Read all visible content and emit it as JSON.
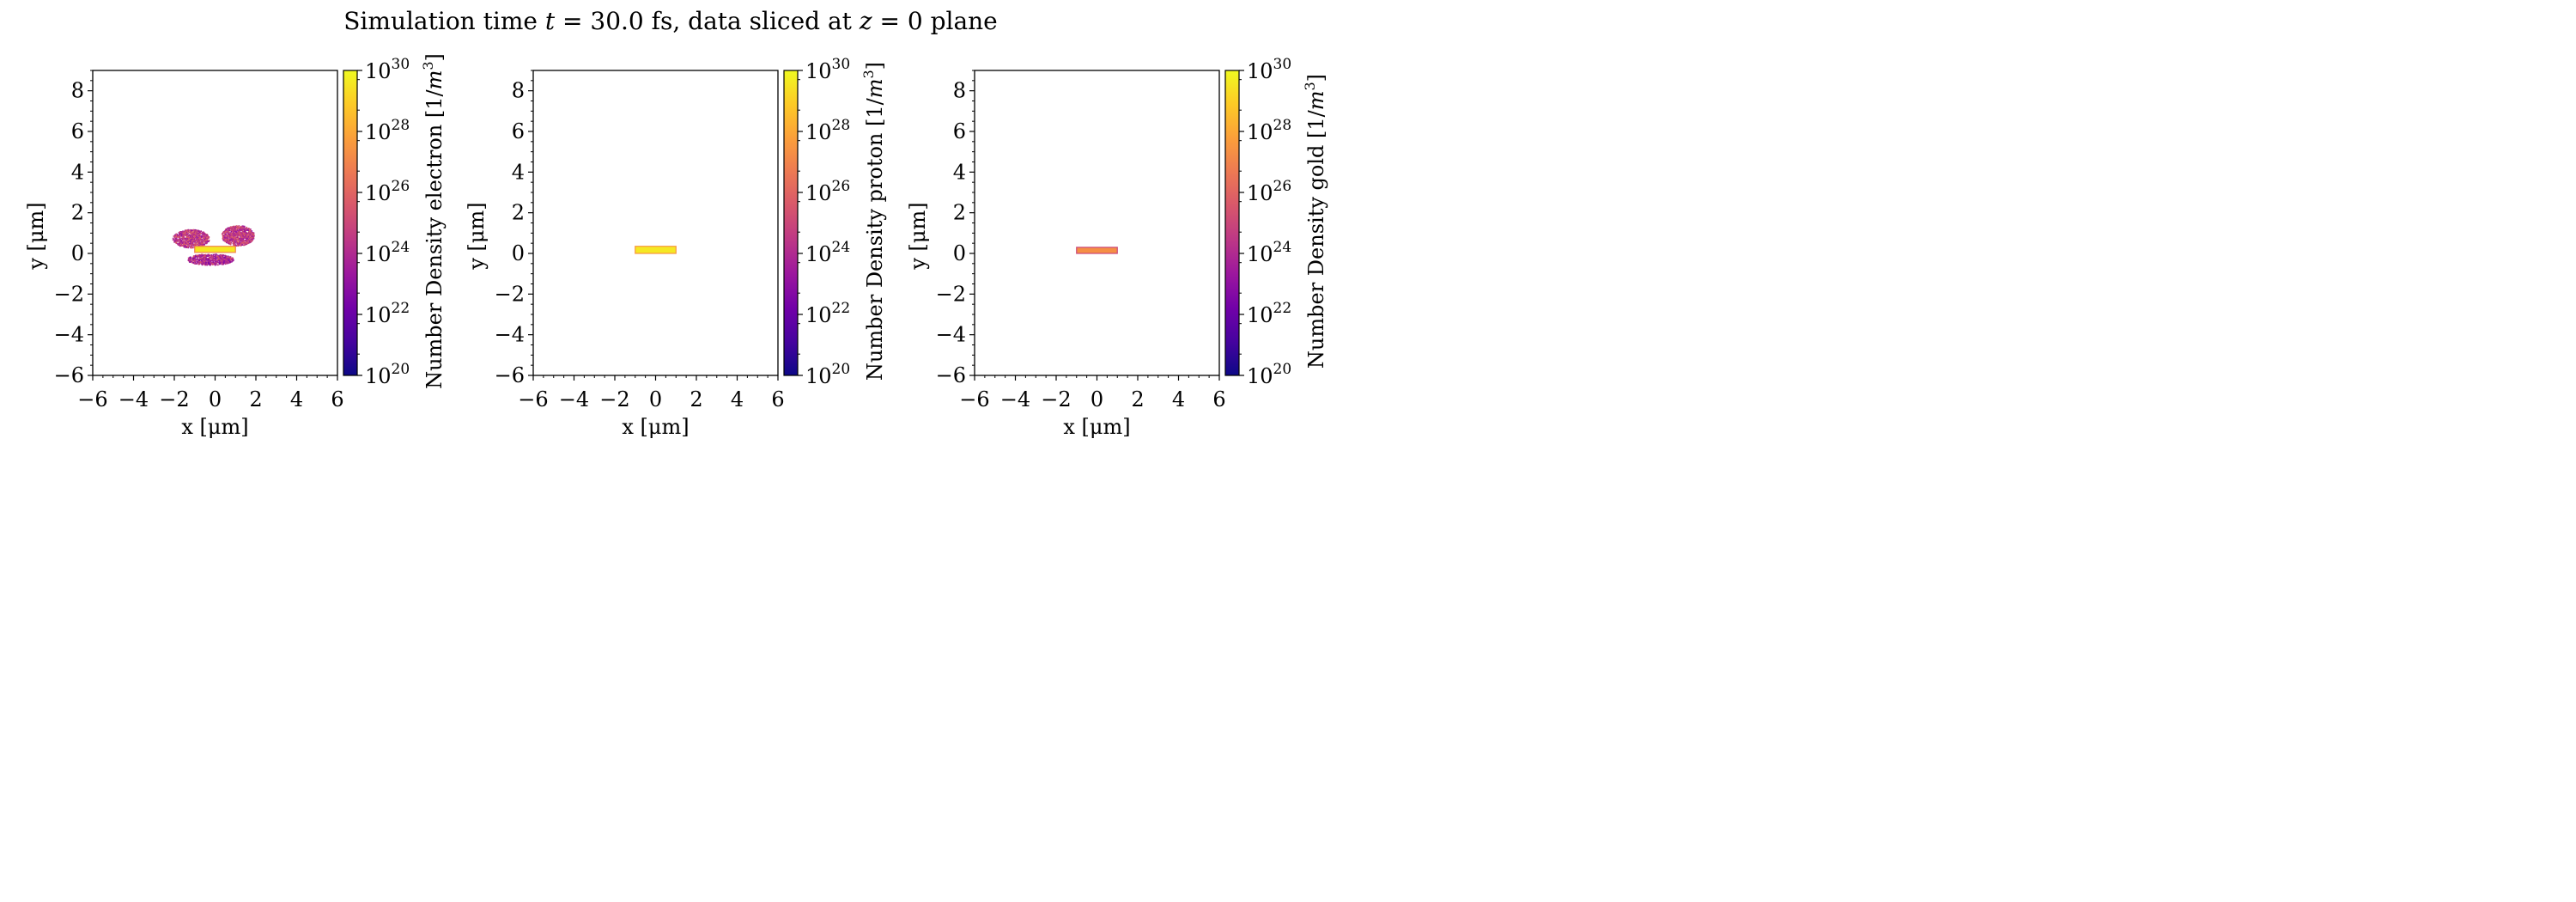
{
  "chart_data": {
    "title": {
      "prefix": "Simulation time ",
      "t_var": "t",
      "t_rel": " = 30.0 fs, data sliced at ",
      "z_var": "z",
      "z_rel": " = 0 plane"
    },
    "type": "heatmap",
    "xlim": [
      -6,
      6
    ],
    "ylim": [
      -6,
      9
    ],
    "x_ticks": [
      -6,
      -4,
      -2,
      0,
      2,
      4,
      6
    ],
    "y_ticks": [
      -6,
      -4,
      -2,
      0,
      2,
      4,
      6,
      8
    ],
    "x_tick_labels": [
      "−6",
      "−4",
      "−2",
      "0",
      "2",
      "4",
      "6"
    ],
    "y_tick_labels": [
      "−6",
      "−4",
      "−2",
      "0",
      "2",
      "4",
      "6",
      "8"
    ],
    "colorbar": {
      "scale": "log10",
      "range_exponents": [
        20,
        30
      ],
      "tick_exponents": [
        20,
        22,
        24,
        26,
        28,
        30
      ],
      "tick_base": "10",
      "tick_exp_labels": [
        "20",
        "22",
        "24",
        "26",
        "28",
        "30"
      ],
      "colormap": "plasma",
      "colormap_stops": [
        "#0d0887",
        "#46039f",
        "#7201a8",
        "#9c179e",
        "#bd3786",
        "#d8576b",
        "#ed7953",
        "#fb9f3a",
        "#fdca26",
        "#f0f921"
      ]
    },
    "panels": [
      {
        "species": "electron",
        "xlabel": "x [μm]",
        "ylabel": "y [μm]",
        "colorbar_label": "Number Density electron [1/m³]",
        "colorbar_label_prefix": "Number Density electron [1/",
        "colorbar_label_unit": "m",
        "colorbar_label_pow": "3",
        "colorbar_label_suffix": "]",
        "target_slab": {
          "x_range": [
            -1.0,
            1.0
          ],
          "y_range": [
            0.05,
            0.35
          ],
          "log10_density": 29.6,
          "border_log10_density": 27.0
        },
        "cloud_regions": [
          {
            "x_range": [
              -2.1,
              -0.3
            ],
            "y_range": [
              0.3,
              1.2
            ],
            "log10_density": 24.5
          },
          {
            "x_range": [
              0.3,
              1.9
            ],
            "y_range": [
              0.4,
              1.4
            ],
            "log10_density": 24.5
          },
          {
            "x_range": [
              -1.4,
              0.9
            ],
            "y_range": [
              -0.55,
              0.0
            ],
            "log10_density": 24.0
          }
        ]
      },
      {
        "species": "proton",
        "xlabel": "x [μm]",
        "ylabel": "y [μm]",
        "colorbar_label": "Number Density proton [1/m³]",
        "colorbar_label_prefix": "Number Density proton [1/",
        "colorbar_label_unit": "m",
        "colorbar_label_pow": "3",
        "colorbar_label_suffix": "]",
        "target_slab": {
          "x_range": [
            -1.0,
            1.0
          ],
          "y_range": [
            0.0,
            0.35
          ],
          "log10_density": 29.6,
          "border_log10_density": 27.5
        },
        "cloud_regions": []
      },
      {
        "species": "gold",
        "xlabel": "x [μm]",
        "ylabel": "y [μm]",
        "colorbar_label": "Number Density gold [1/m³]",
        "colorbar_label_prefix": "Number Density gold [1/",
        "colorbar_label_unit": "m",
        "colorbar_label_pow": "3",
        "colorbar_label_suffix": "]",
        "target_slab": {
          "x_range": [
            -1.0,
            1.0
          ],
          "y_range": [
            0.0,
            0.3
          ],
          "log10_density": 27.3,
          "border_log10_density": 25.0
        },
        "cloud_regions": []
      }
    ]
  }
}
